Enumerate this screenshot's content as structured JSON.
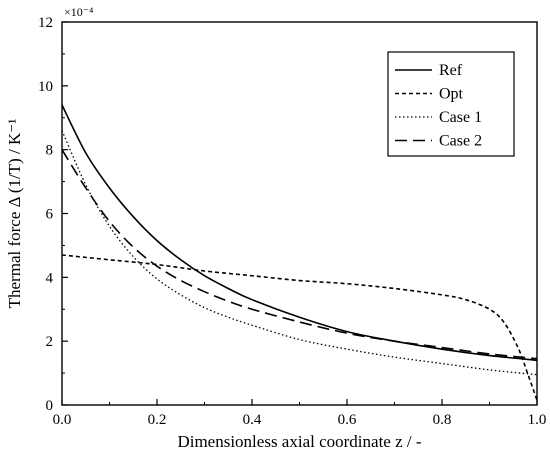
{
  "chart_data": {
    "type": "line",
    "title": "",
    "xlabel": "Dimensionless axial coordinate z / -",
    "ylabel": "Thermal force  Δ (1/T) / K⁻¹",
    "y_multiplier": "×10⁻⁴",
    "xlim": [
      0.0,
      1.0
    ],
    "ylim": [
      0,
      12
    ],
    "x_ticks": [
      "0.0",
      "0.2",
      "0.4",
      "0.6",
      "0.8",
      "1.0"
    ],
    "y_ticks": [
      "0",
      "2",
      "4",
      "6",
      "8",
      "10",
      "12"
    ],
    "grid": false,
    "legend_position": "top-right",
    "series": [
      {
        "name": "Ref",
        "style": "solid",
        "x": [
          0.0,
          0.05,
          0.1,
          0.15,
          0.2,
          0.25,
          0.3,
          0.35,
          0.4,
          0.5,
          0.6,
          0.7,
          0.8,
          0.9,
          1.0
        ],
        "y": [
          9.4,
          7.9,
          6.8,
          5.9,
          5.15,
          4.55,
          4.05,
          3.65,
          3.3,
          2.75,
          2.3,
          2.0,
          1.75,
          1.55,
          1.4
        ]
      },
      {
        "name": "Opt",
        "style": "short-dash",
        "x": [
          0.0,
          0.1,
          0.2,
          0.3,
          0.4,
          0.5,
          0.6,
          0.7,
          0.8,
          0.85,
          0.9,
          0.93,
          0.96,
          0.98,
          1.0
        ],
        "y": [
          4.7,
          4.55,
          4.4,
          4.2,
          4.05,
          3.9,
          3.8,
          3.65,
          3.45,
          3.3,
          3.0,
          2.6,
          1.8,
          1.0,
          0.15
        ]
      },
      {
        "name": "Case 1",
        "style": "dotted",
        "x": [
          0.0,
          0.05,
          0.1,
          0.15,
          0.2,
          0.25,
          0.3,
          0.35,
          0.4,
          0.5,
          0.6,
          0.7,
          0.8,
          0.9,
          1.0
        ],
        "y": [
          8.6,
          6.9,
          5.6,
          4.65,
          3.95,
          3.45,
          3.05,
          2.75,
          2.5,
          2.05,
          1.75,
          1.5,
          1.3,
          1.1,
          0.95
        ]
      },
      {
        "name": "Case 2",
        "style": "long-dash",
        "x": [
          0.0,
          0.05,
          0.1,
          0.15,
          0.2,
          0.25,
          0.3,
          0.35,
          0.4,
          0.5,
          0.6,
          0.7,
          0.8,
          0.9,
          1.0
        ],
        "y": [
          8.0,
          6.8,
          5.75,
          4.95,
          4.35,
          3.9,
          3.55,
          3.25,
          3.0,
          2.6,
          2.25,
          2.0,
          1.8,
          1.6,
          1.45
        ]
      }
    ]
  }
}
